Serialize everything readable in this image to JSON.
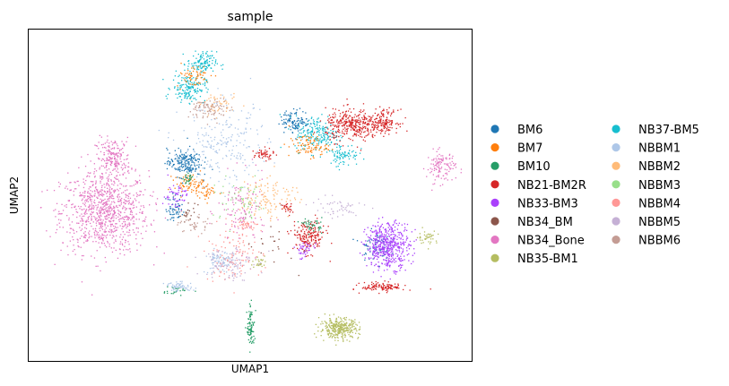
{
  "chart_data": {
    "type": "scatter",
    "title": "sample",
    "xlabel": "UMAP1",
    "ylabel": "UMAP2",
    "xlim": [
      0,
      10
    ],
    "ylim": [
      0,
      8
    ],
    "ticks": false,
    "grid": false,
    "legend": {
      "placement": "right",
      "columns": 2,
      "entries": [
        {
          "name": "BM6",
          "color": "#1f77b4"
        },
        {
          "name": "BM7",
          "color": "#ff7f0e"
        },
        {
          "name": "BM10",
          "color": "#279e68"
        },
        {
          "name": "NB21-BM2R",
          "color": "#d62728"
        },
        {
          "name": "NB33-BM3",
          "color": "#aa40fc"
        },
        {
          "name": "NB34_BM",
          "color": "#8c564b"
        },
        {
          "name": "NB34_Bone",
          "color": "#e377c2"
        },
        {
          "name": "NB35-BM1",
          "color": "#b5bd61"
        },
        {
          "name": "NB37-BM5",
          "color": "#17becf"
        },
        {
          "name": "NBBM1",
          "color": "#aec7e8"
        },
        {
          "name": "NBBM2",
          "color": "#ffbb78"
        },
        {
          "name": "NBBM3",
          "color": "#98df8a"
        },
        {
          "name": "NBBM4",
          "color": "#ff9896"
        },
        {
          "name": "NBBM5",
          "color": "#c5b0d5"
        },
        {
          "name": "NBBM6",
          "color": "#c49c94"
        }
      ]
    },
    "clusters": [
      {
        "series": "NB34_Bone",
        "x": 1.7,
        "y": 3.6,
        "sx": 0.9,
        "sy": 0.9,
        "n": 900
      },
      {
        "series": "NB34_Bone",
        "x": 1.9,
        "y": 4.9,
        "sx": 0.35,
        "sy": 0.45,
        "n": 200
      },
      {
        "series": "NB34_Bone",
        "x": 9.3,
        "y": 4.7,
        "sx": 0.3,
        "sy": 0.35,
        "n": 120
      },
      {
        "series": "NB34_Bone",
        "x": 4.8,
        "y": 3.6,
        "sx": 0.5,
        "sy": 0.8,
        "n": 120
      },
      {
        "series": "NB37-BM5",
        "x": 3.6,
        "y": 6.6,
        "sx": 0.35,
        "sy": 0.3,
        "n": 160
      },
      {
        "series": "NB37-BM5",
        "x": 3.9,
        "y": 7.2,
        "sx": 0.3,
        "sy": 0.25,
        "n": 120
      },
      {
        "series": "NB37-BM5",
        "x": 6.5,
        "y": 5.5,
        "sx": 0.45,
        "sy": 0.4,
        "n": 200
      },
      {
        "series": "NB37-BM5",
        "x": 7.1,
        "y": 5.0,
        "sx": 0.3,
        "sy": 0.25,
        "n": 80
      },
      {
        "series": "BM7",
        "x": 3.7,
        "y": 6.9,
        "sx": 0.35,
        "sy": 0.25,
        "n": 60
      },
      {
        "series": "BM7",
        "x": 3.6,
        "y": 4.3,
        "sx": 0.3,
        "sy": 0.2,
        "n": 70
      },
      {
        "series": "BM7",
        "x": 6.3,
        "y": 5.2,
        "sx": 0.4,
        "sy": 0.25,
        "n": 90
      },
      {
        "series": "BM7",
        "x": 4.0,
        "y": 4.1,
        "sx": 0.2,
        "sy": 0.2,
        "n": 40
      },
      {
        "series": "BM6",
        "x": 3.5,
        "y": 4.8,
        "sx": 0.35,
        "sy": 0.3,
        "n": 200
      },
      {
        "series": "BM6",
        "x": 6.0,
        "y": 5.8,
        "sx": 0.3,
        "sy": 0.25,
        "n": 110
      },
      {
        "series": "BM6",
        "x": 3.3,
        "y": 3.7,
        "sx": 0.2,
        "sy": 0.3,
        "n": 60
      },
      {
        "series": "BM6",
        "x": 7.8,
        "y": 2.8,
        "sx": 0.3,
        "sy": 0.3,
        "n": 70
      },
      {
        "series": "NB21-BM2R",
        "x": 7.3,
        "y": 5.7,
        "sx": 0.55,
        "sy": 0.35,
        "n": 350
      },
      {
        "series": "NB21-BM2R",
        "x": 8.0,
        "y": 5.8,
        "sx": 0.3,
        "sy": 0.25,
        "n": 150
      },
      {
        "series": "NB21-BM2R",
        "x": 6.3,
        "y": 3.0,
        "sx": 0.35,
        "sy": 0.35,
        "n": 180
      },
      {
        "series": "NB21-BM2R",
        "x": 8.0,
        "y": 1.8,
        "sx": 0.45,
        "sy": 0.1,
        "n": 120
      },
      {
        "series": "NB21-BM2R",
        "x": 5.3,
        "y": 5.0,
        "sx": 0.2,
        "sy": 0.12,
        "n": 50
      },
      {
        "series": "NB21-BM2R",
        "x": 5.8,
        "y": 3.7,
        "sx": 0.12,
        "sy": 0.15,
        "n": 30
      },
      {
        "series": "NB33-BM3",
        "x": 8.1,
        "y": 2.8,
        "sx": 0.45,
        "sy": 0.5,
        "n": 500
      },
      {
        "series": "NB33-BM3",
        "x": 3.3,
        "y": 4.0,
        "sx": 0.25,
        "sy": 0.3,
        "n": 50
      },
      {
        "series": "NB33-BM3",
        "x": 6.2,
        "y": 2.7,
        "sx": 0.2,
        "sy": 0.2,
        "n": 40
      },
      {
        "series": "NB35-BM1",
        "x": 7.0,
        "y": 0.8,
        "sx": 0.4,
        "sy": 0.22,
        "n": 330
      },
      {
        "series": "NB35-BM1",
        "x": 9.0,
        "y": 3.0,
        "sx": 0.2,
        "sy": 0.15,
        "n": 40
      },
      {
        "series": "NB35-BM1",
        "x": 5.2,
        "y": 2.4,
        "sx": 0.15,
        "sy": 0.15,
        "n": 30
      },
      {
        "series": "BM10",
        "x": 5.0,
        "y": 0.8,
        "sx": 0.08,
        "sy": 0.45,
        "n": 90
      },
      {
        "series": "BM10",
        "x": 3.6,
        "y": 4.4,
        "sx": 0.1,
        "sy": 0.1,
        "n": 25
      },
      {
        "series": "BM10",
        "x": 6.4,
        "y": 3.3,
        "sx": 0.2,
        "sy": 0.15,
        "n": 40
      },
      {
        "series": "BM10",
        "x": 3.3,
        "y": 1.7,
        "sx": 0.3,
        "sy": 0.1,
        "n": 25
      },
      {
        "series": "NBBM1",
        "x": 4.4,
        "y": 5.2,
        "sx": 0.9,
        "sy": 0.9,
        "n": 220
      },
      {
        "series": "NBBM1",
        "x": 4.3,
        "y": 2.4,
        "sx": 0.3,
        "sy": 0.25,
        "n": 90
      },
      {
        "series": "NBBM1",
        "x": 3.4,
        "y": 1.8,
        "sx": 0.3,
        "sy": 0.1,
        "n": 60
      },
      {
        "series": "NBBM2",
        "x": 5.4,
        "y": 4.0,
        "sx": 0.6,
        "sy": 0.5,
        "n": 120
      },
      {
        "series": "NBBM2",
        "x": 4.3,
        "y": 6.2,
        "sx": 0.4,
        "sy": 0.2,
        "n": 50
      },
      {
        "series": "NBBM3",
        "x": 4.8,
        "y": 3.8,
        "sx": 0.6,
        "sy": 0.5,
        "n": 60
      },
      {
        "series": "NBBM4",
        "x": 4.6,
        "y": 2.6,
        "sx": 0.6,
        "sy": 0.6,
        "n": 110
      },
      {
        "series": "NBBM4",
        "x": 4.9,
        "y": 3.3,
        "sx": 0.25,
        "sy": 0.1,
        "n": 40
      },
      {
        "series": "NBBM5",
        "x": 4.5,
        "y": 2.4,
        "sx": 0.5,
        "sy": 0.4,
        "n": 90
      },
      {
        "series": "NBBM5",
        "x": 6.9,
        "y": 3.7,
        "sx": 0.6,
        "sy": 0.25,
        "n": 50
      },
      {
        "series": "NBBM6",
        "x": 4.1,
        "y": 6.1,
        "sx": 0.4,
        "sy": 0.25,
        "n": 90
      },
      {
        "series": "NBBM6",
        "x": 3.7,
        "y": 3.3,
        "sx": 0.3,
        "sy": 0.2,
        "n": 40
      },
      {
        "series": "NB34_BM",
        "x": 5.6,
        "y": 3.0,
        "sx": 0.6,
        "sy": 0.6,
        "n": 25
      },
      {
        "series": "NB34_BM",
        "x": 3.6,
        "y": 3.6,
        "sx": 0.2,
        "sy": 0.2,
        "n": 20
      }
    ]
  }
}
